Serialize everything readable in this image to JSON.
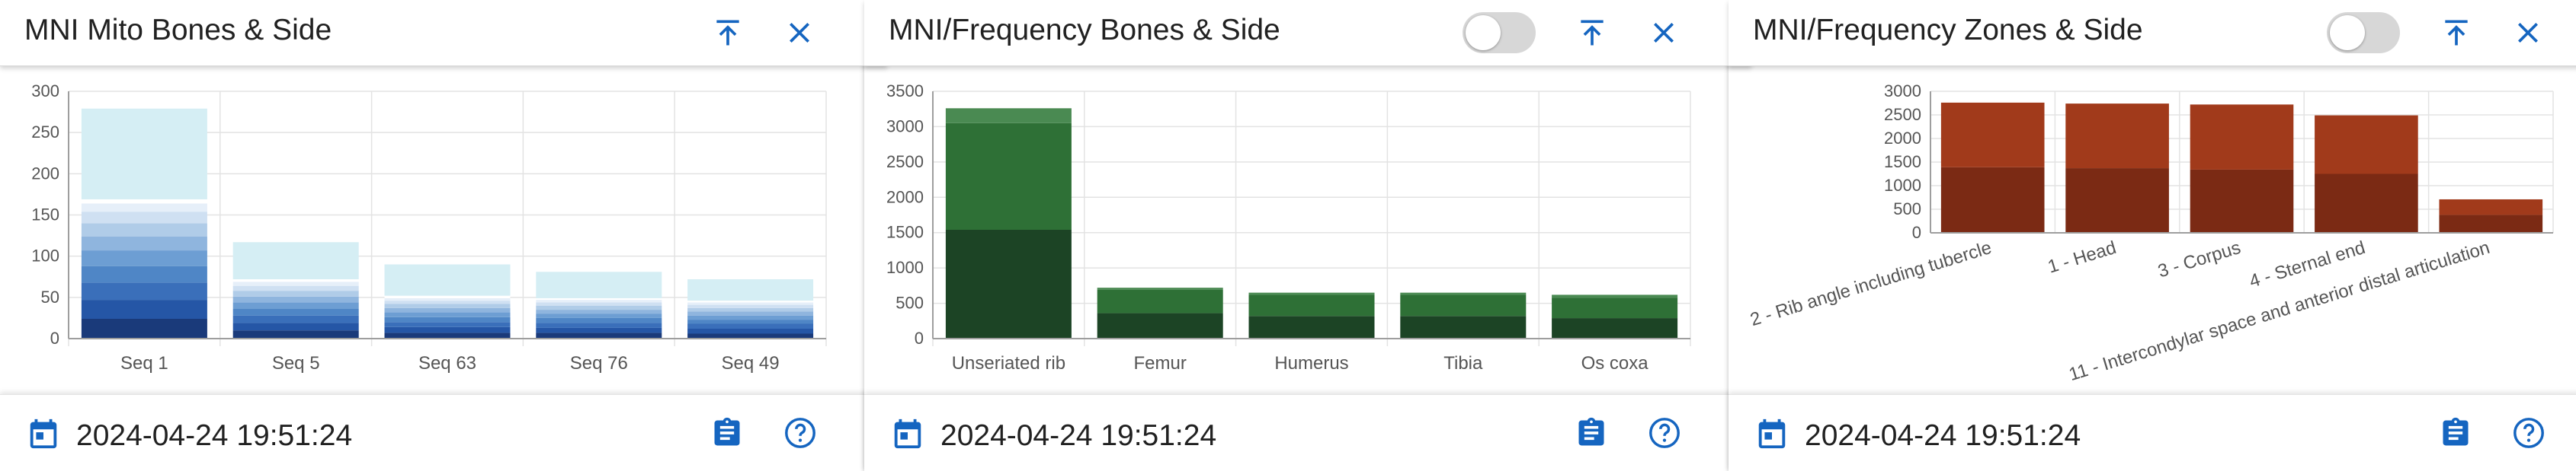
{
  "colors": {
    "accent": "#1565c0",
    "text": "#212121",
    "grid": "#e3e3e3"
  },
  "icons": {
    "pin": "pin-to-top-icon",
    "close": "close-icon",
    "calendar": "calendar-icon",
    "clipboard": "clipboard-icon",
    "help": "help-circle-icon"
  },
  "cards": [
    {
      "title": "MNI Mito Bones & Side",
      "has_toggle": false,
      "timestamp": "2024-04-24 19:51:24",
      "chart_data": {
        "type": "bar",
        "stacked": true,
        "ylim": [
          0,
          300
        ],
        "yticks": [
          0,
          50,
          100,
          150,
          200,
          250,
          300
        ],
        "categories": [
          "Seq 1",
          "Seq 5",
          "Seq 63",
          "Seq 76",
          "Seq 49"
        ],
        "series": [
          {
            "color": "#1a3a7a",
            "values": [
              24,
              10,
              7,
              7,
              6
            ]
          },
          {
            "color": "#2556a6",
            "values": [
              23,
              9,
              7,
              6,
              6
            ]
          },
          {
            "color": "#3a6fba",
            "values": [
              21,
              9,
              6,
              6,
              6
            ]
          },
          {
            "color": "#4f86c6",
            "values": [
              20,
              8,
              6,
              6,
              5
            ]
          },
          {
            "color": "#6d9ed3",
            "values": [
              19,
              8,
              6,
              5,
              5
            ]
          },
          {
            "color": "#8fb5de",
            "values": [
              17,
              7,
              5,
              5,
              5
            ]
          },
          {
            "color": "#b0cce8",
            "values": [
              16,
              7,
              5,
              5,
              4
            ]
          },
          {
            "color": "#cfe0f2",
            "values": [
              14,
              6,
              4,
              4,
              4
            ]
          },
          {
            "color": "#e6eff9",
            "values": [
              10,
              5,
              3,
              3,
              3
            ]
          },
          {
            "color": "#ffffff",
            "values": [
              5,
              3,
              3,
              2,
              2
            ]
          },
          {
            "color": "#d5eef4",
            "values": [
              110,
              45,
              38,
              32,
              26
            ]
          }
        ]
      }
    },
    {
      "title": "MNI/Frequency Bones & Side",
      "has_toggle": true,
      "timestamp": "2024-04-24 19:51:24",
      "chart_data": {
        "type": "bar",
        "stacked": true,
        "ylim": [
          0,
          3500
        ],
        "yticks": [
          0,
          500,
          1000,
          1500,
          2000,
          2500,
          3000,
          3500
        ],
        "categories": [
          "Unseriated rib",
          "Femur",
          "Humerus",
          "Tibia",
          "Os coxa"
        ],
        "series": [
          {
            "color": "#1c4425",
            "values": [
              1540,
              360,
              320,
              320,
              290
            ]
          },
          {
            "color": "#2e7036",
            "values": [
              1510,
              330,
              300,
              300,
              290
            ]
          },
          {
            "color": "#4a8a52",
            "values": [
              210,
              30,
              30,
              30,
              40
            ]
          }
        ]
      }
    },
    {
      "title": "MNI/Frequency Zones & Side",
      "has_toggle": true,
      "timestamp": "2024-04-24 19:51:24",
      "chart_data": {
        "type": "bar",
        "stacked": true,
        "ylim": [
          0,
          3000
        ],
        "yticks": [
          0,
          500,
          1000,
          1500,
          2000,
          2500,
          3000
        ],
        "categories": [
          "2 - Rib angle including tubercle",
          "1 - Head",
          "3 - Corpus",
          "4 - Sternal end",
          "11 - Intercondylar space and anterior distal articulation"
        ],
        "series": [
          {
            "color": "#7b2a14",
            "values": [
              1390,
              1370,
              1340,
              1250,
              380
            ]
          },
          {
            "color": "#a13a1b",
            "values": [
              1370,
              1370,
              1380,
              1240,
              330
            ]
          }
        ]
      }
    }
  ]
}
